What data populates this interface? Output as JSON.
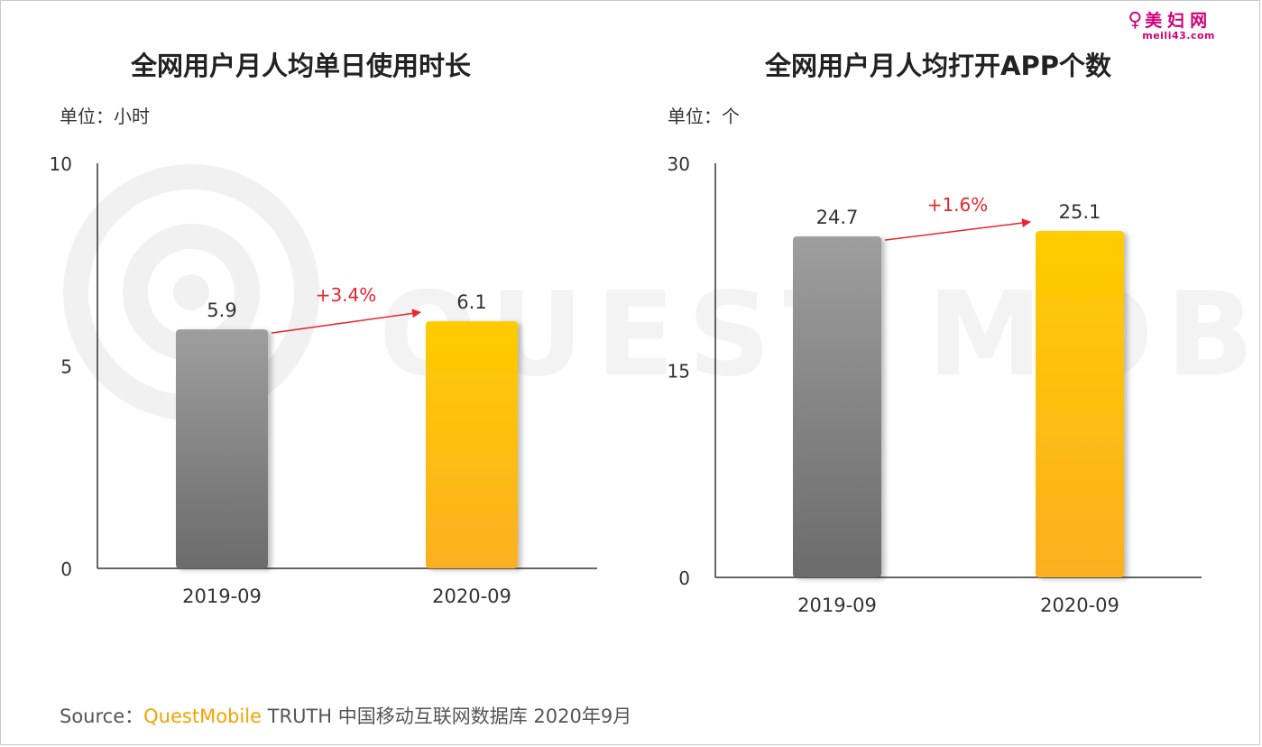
{
  "watermark": {
    "text": "QUEST MOBILE"
  },
  "logo": {
    "main": "美妇网",
    "sub": "meili43.com"
  },
  "charts_text": {
    "left_unit": "单位：小时",
    "right_unit": "单位：个"
  },
  "source": {
    "prefix": "Source：",
    "brand": "QuestMobile",
    "rest": " TRUTH 中国移动互联网数据库 2020年9月"
  },
  "colors": {
    "bar_2019_top": "#9e9e9e",
    "bar_2019_bottom": "#6b6b6b",
    "bar_2020_top": "#ffcc00",
    "bar_2020_bottom": "#fbb021",
    "growth_arrow": "#e8262b",
    "axis": "#333333"
  },
  "chart_data": [
    {
      "type": "bar",
      "title": "全网用户月人均单日使用时长",
      "categories": [
        "2019-09",
        "2020-09"
      ],
      "values": [
        5.9,
        6.1
      ],
      "value_labels": [
        "5.9",
        "6.1"
      ],
      "ylim": [
        0,
        10
      ],
      "yticks": [
        "0",
        "5",
        "10"
      ],
      "annotation": "+3.4%",
      "grid": false
    },
    {
      "type": "bar",
      "title": "全网用户月人均打开APP个数",
      "categories": [
        "2019-09",
        "2020-09"
      ],
      "values": [
        24.7,
        25.1
      ],
      "value_labels": [
        "24.7",
        "25.1"
      ],
      "ylim": [
        0,
        30
      ],
      "yticks": [
        "0",
        "15",
        "30"
      ],
      "annotation": "+1.6%",
      "grid": false
    }
  ]
}
